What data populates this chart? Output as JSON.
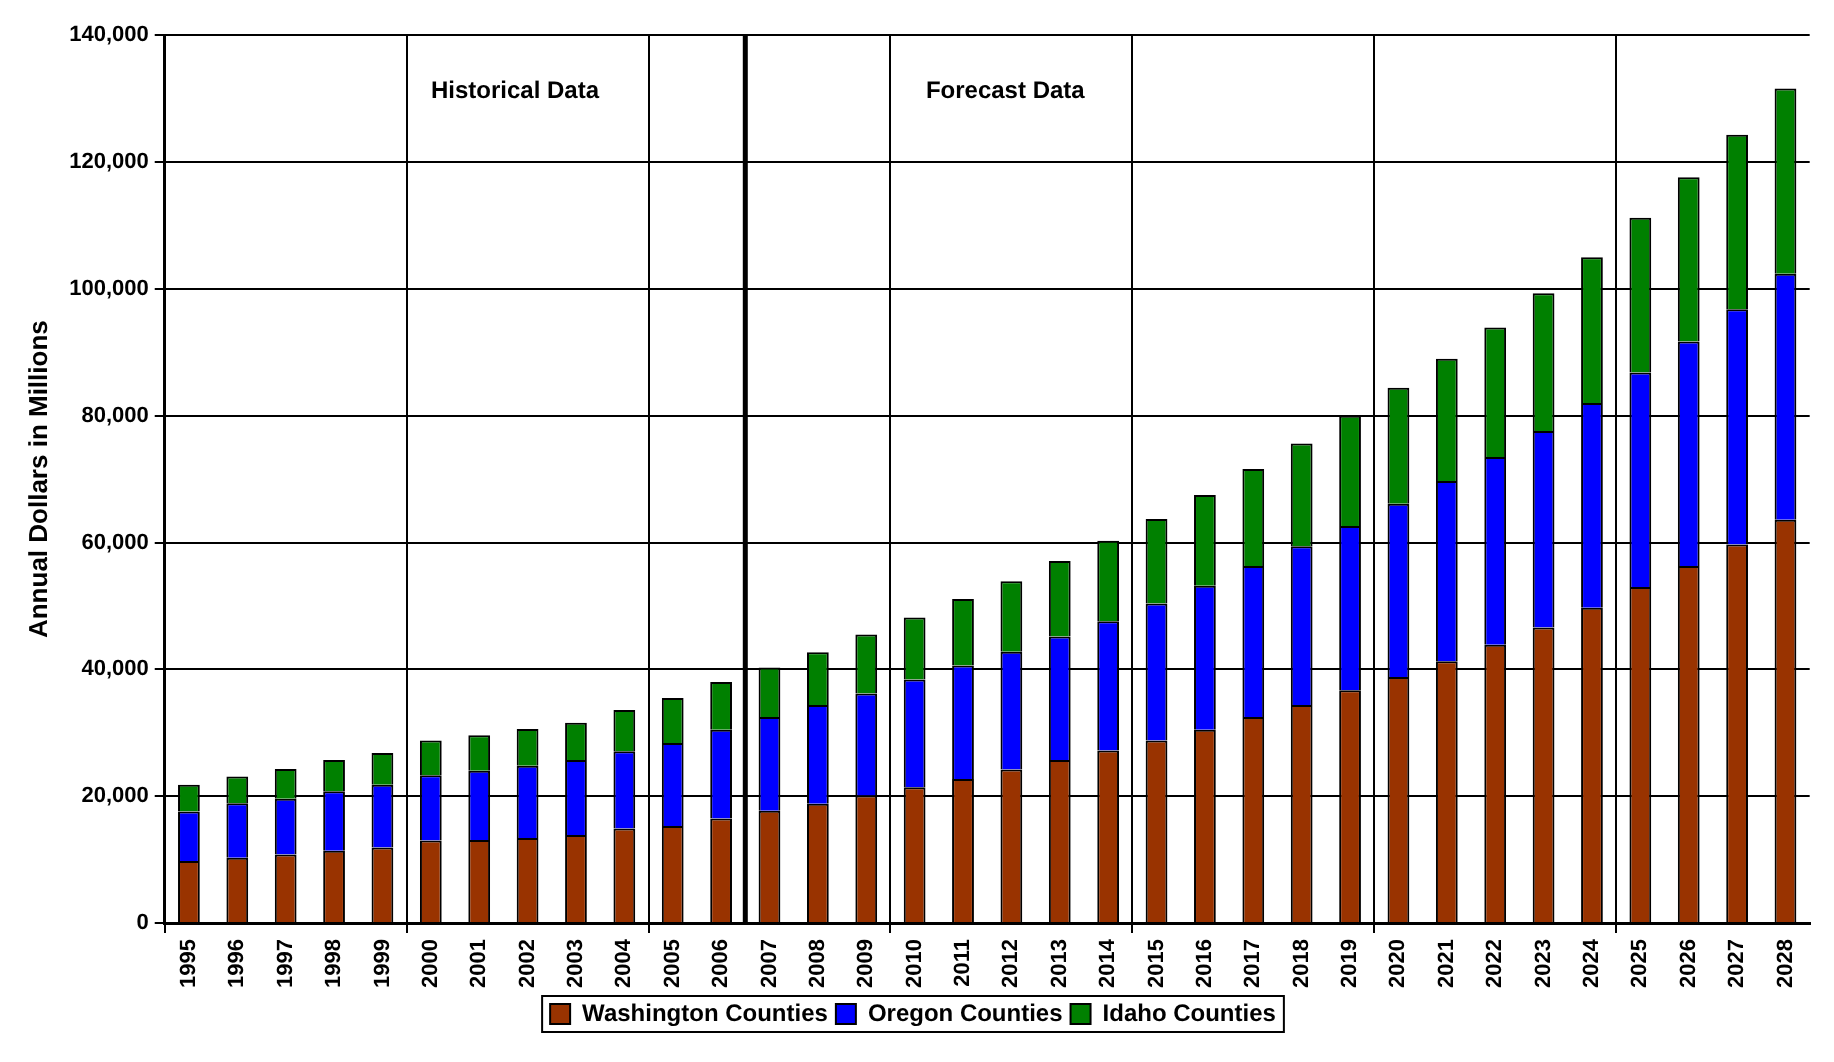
{
  "chart_data": {
    "type": "bar",
    "stacked": true,
    "ylabel": "Annual Dollars in Millions",
    "categories": [
      "1995",
      "1996",
      "1997",
      "1998",
      "1999",
      "2000",
      "2001",
      "2002",
      "2003",
      "2004",
      "2005",
      "2006",
      "2007",
      "2008",
      "2009",
      "2010",
      "2011",
      "2012",
      "2013",
      "2014",
      "2015",
      "2016",
      "2017",
      "2018",
      "2019",
      "2020",
      "2021",
      "2022",
      "2023",
      "2024",
      "2025",
      "2026",
      "2027",
      "2028"
    ],
    "series": [
      {
        "name": "Washington Counties",
        "color": "#993300",
        "values": [
          9800,
          10300,
          10800,
          11400,
          11900,
          13000,
          13100,
          13400,
          13900,
          14900,
          15300,
          16500,
          17700,
          18800,
          20100,
          21400,
          22700,
          24200,
          25700,
          27200,
          28800,
          30500,
          32500,
          34400,
          36700,
          38800,
          41300,
          43900,
          46600,
          49700,
          53000,
          56300,
          59700,
          63600
        ]
      },
      {
        "name": "Oregon Counties",
        "color": "#0000ff",
        "values": [
          7800,
          8600,
          8800,
          9400,
          9900,
          10300,
          10900,
          11400,
          11800,
          12200,
          13100,
          14000,
          14800,
          15600,
          16100,
          17000,
          17900,
          18600,
          19500,
          20400,
          21600,
          22700,
          23800,
          25000,
          25900,
          27300,
          28400,
          29600,
          31000,
          32300,
          33800,
          35400,
          37100,
          38800
        ]
      },
      {
        "name": "Idaho Counties",
        "color": "#008000",
        "values": [
          4200,
          4200,
          4700,
          4900,
          5000,
          5500,
          5600,
          5800,
          5900,
          6500,
          7100,
          7500,
          7800,
          8300,
          9300,
          9800,
          10500,
          11100,
          11900,
          12700,
          13300,
          14300,
          15300,
          16200,
          17400,
          18300,
          19300,
          20400,
          21700,
          23000,
          24400,
          25900,
          27500,
          29200
        ]
      }
    ],
    "ylim": [
      0,
      140000
    ],
    "yticks": [
      {
        "value": 0,
        "label": "0"
      },
      {
        "value": 20000,
        "label": "20,000"
      },
      {
        "value": 40000,
        "label": "40,000"
      },
      {
        "value": 60000,
        "label": "60,000"
      },
      {
        "value": 80000,
        "label": "80,000"
      },
      {
        "value": 100000,
        "label": "100,000"
      },
      {
        "value": 120000,
        "label": "120,000"
      },
      {
        "value": 140000,
        "label": "140,000"
      }
    ],
    "grid": true,
    "legend": "bottom",
    "ref_lines": [
      {
        "axis": "x",
        "value": "2007"
      }
    ],
    "annotations": [
      "Historical Data",
      "Forecast Data"
    ]
  }
}
